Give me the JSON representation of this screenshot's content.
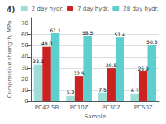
{
  "chart_data": {
    "type": "bar",
    "title": "4)",
    "xlabel": "Sample",
    "ylabel": "Compressive strength, MPa",
    "categories": [
      "PC42.5B",
      "PC10Z",
      "PC30Z",
      "PC50Z"
    ],
    "series": [
      {
        "name": "2 day hydr.",
        "color": "#9eddd8",
        "values": [
          33.0,
          5.3,
          7.5,
          6.7
        ],
        "value_labels": [
          "33.0",
          "5.3",
          "7.5",
          "6.7"
        ]
      },
      {
        "name": "7 day hydr.",
        "color": "#cc2222",
        "values": [
          49.0,
          22.5,
          29.8,
          26.9
        ],
        "value_labels": [
          "49.0",
          "22.5",
          "29.8",
          "26.9"
        ]
      },
      {
        "name": "28 day hydr.",
        "color": "#5ecfcc",
        "values": [
          61.1,
          58.5,
          57.4,
          50.5
        ],
        "value_labels": [
          "61.1",
          "58.5",
          "57.4",
          "50.5"
        ]
      }
    ],
    "ylim": [
      0,
      75
    ],
    "yticks": [
      0,
      10,
      20,
      30,
      40,
      50,
      60,
      70
    ],
    "grid": true,
    "legend": "upper right",
    "data_labels": true
  }
}
